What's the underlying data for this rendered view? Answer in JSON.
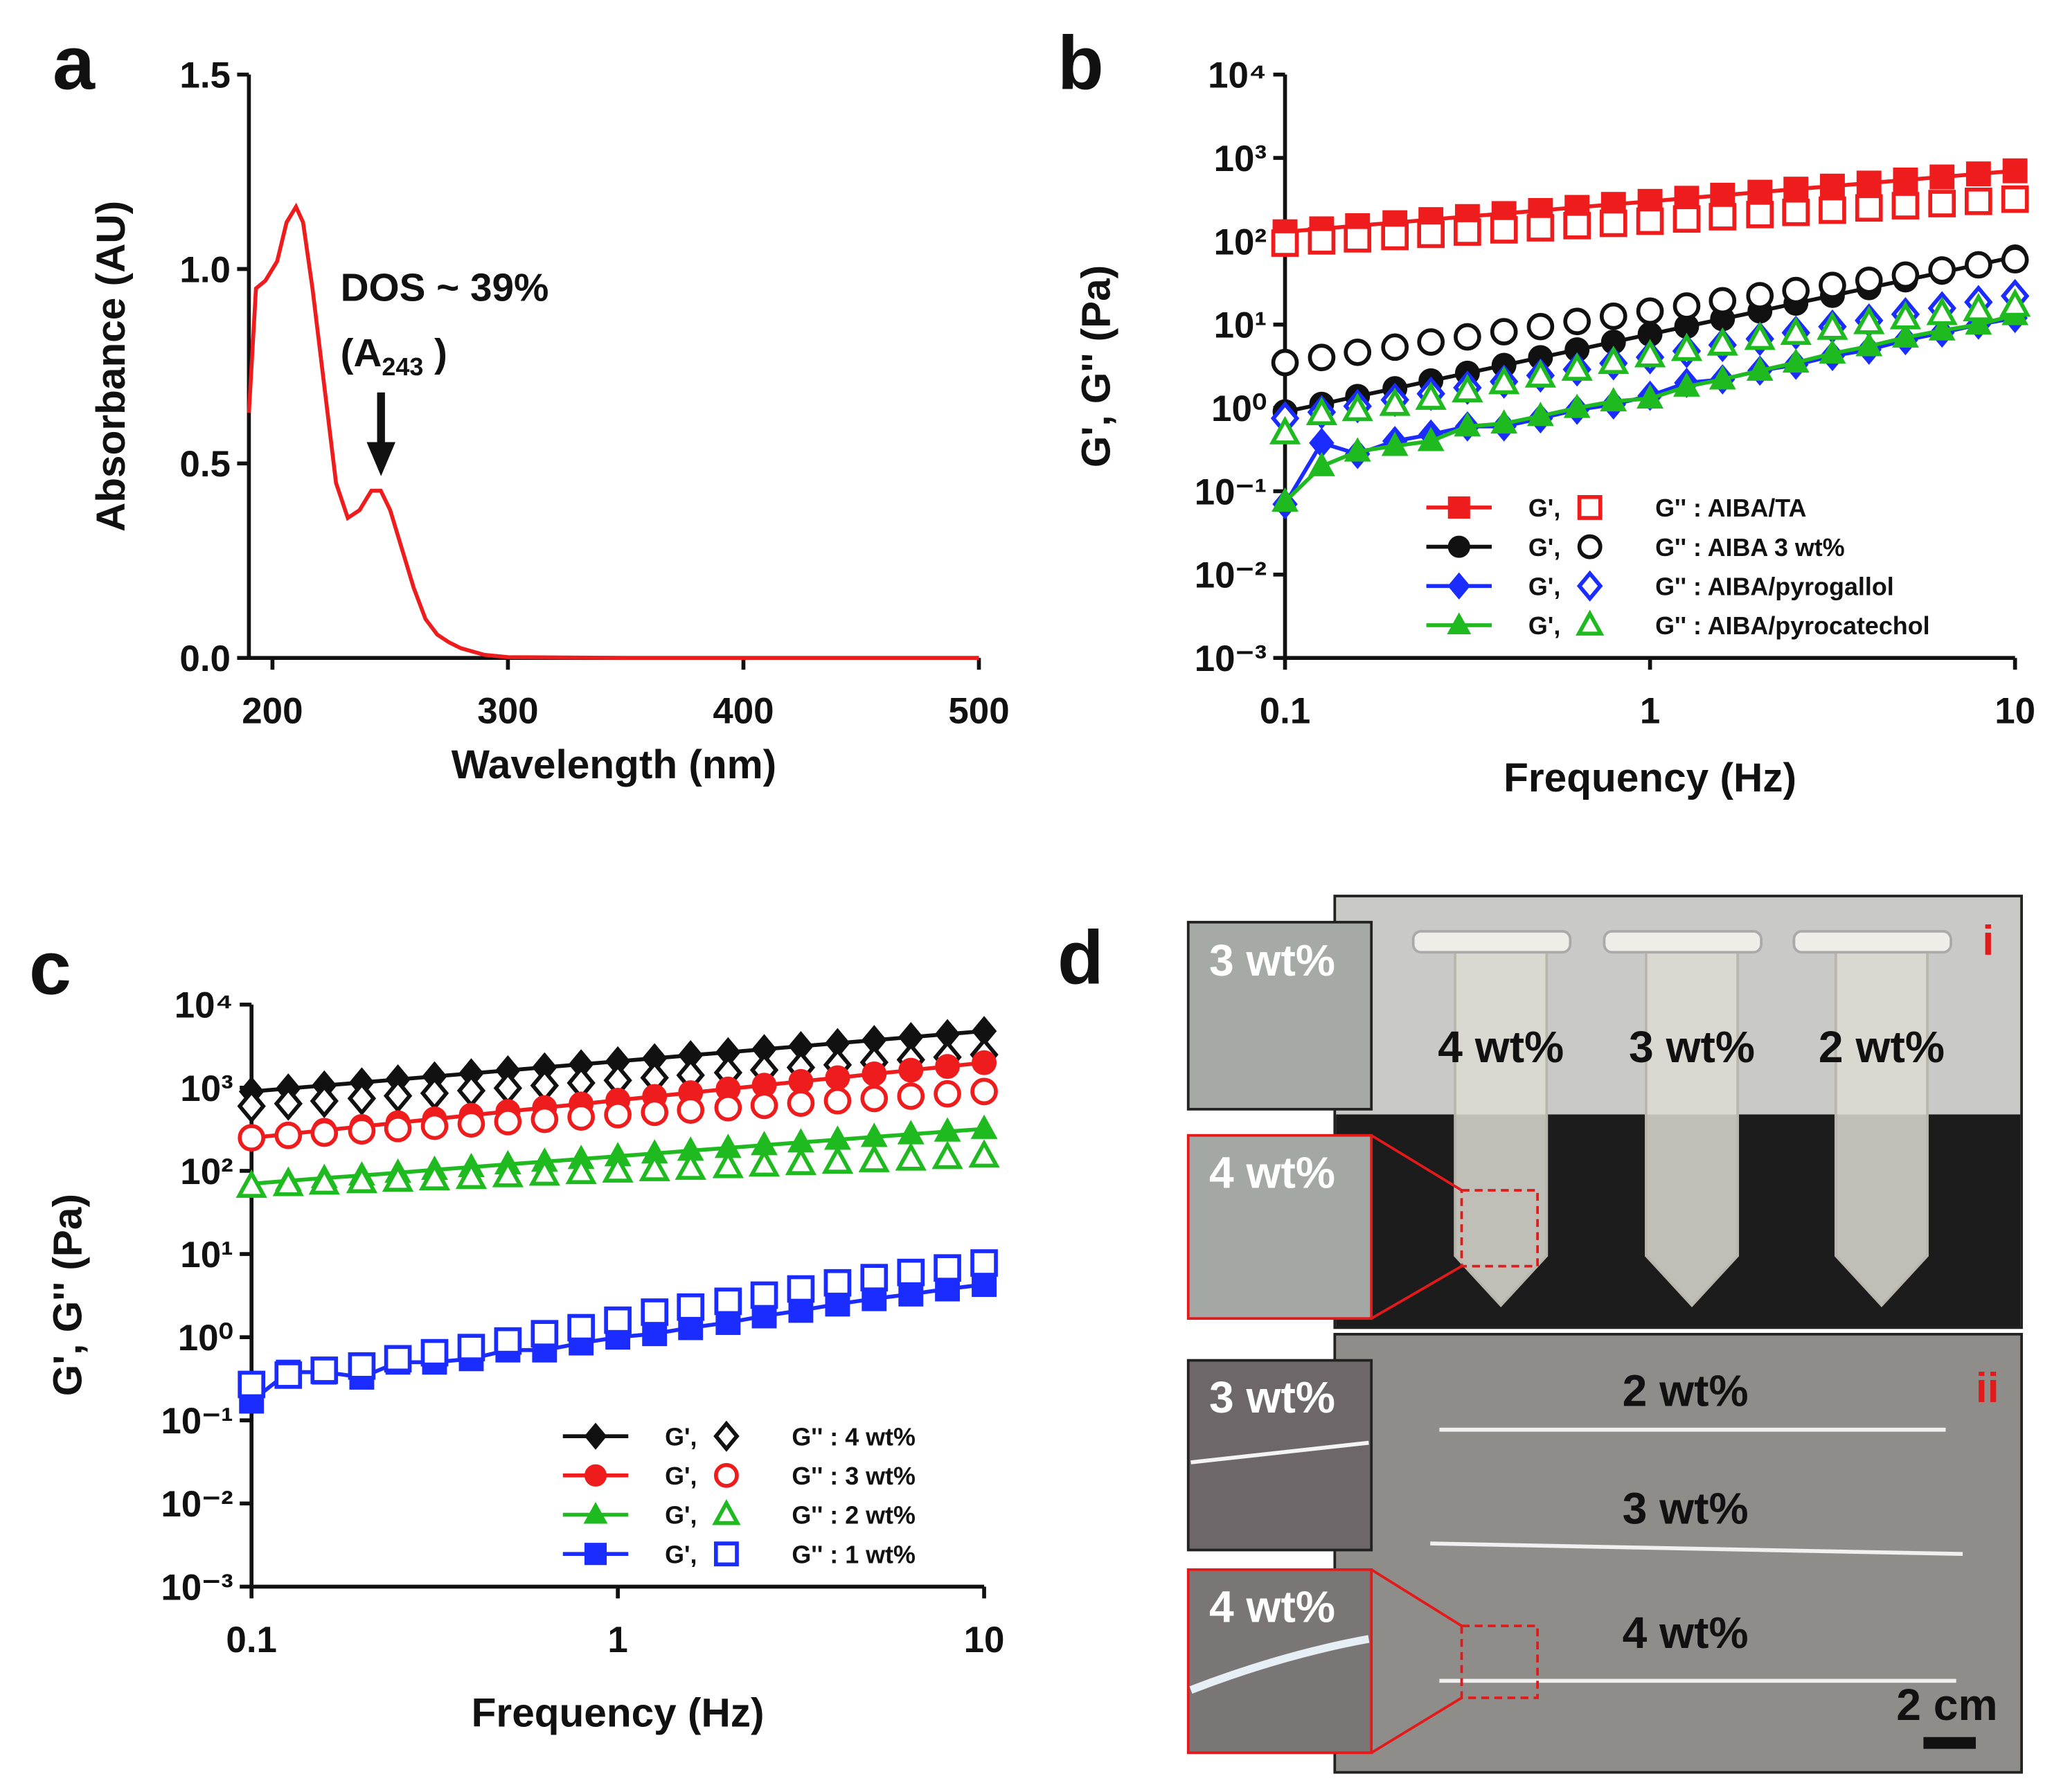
{
  "chart_data": [
    {
      "type": "line",
      "panel": "a",
      "xlabel": "Wavelength (nm)",
      "ylabel": "Absorbance (AU)",
      "annotation": "DOS ~ 39%",
      "annotation_label": {
        "text": "(A",
        "sub": "243",
        "end": " )"
      },
      "xlim": [
        190,
        500
      ],
      "xticks": [
        200,
        300,
        400,
        500
      ],
      "ylim": [
        0,
        1.5
      ],
      "yticks": [
        {
          "value": 0,
          "label": "0.0"
        },
        {
          "value": 0.5,
          "label": "0.5"
        },
        {
          "value": 1,
          "label": "1.0"
        },
        {
          "value": 1.5,
          "label": "1.5"
        }
      ],
      "x": [
        190,
        193,
        197,
        202,
        206,
        210,
        213,
        217,
        222,
        227,
        232,
        237,
        242,
        246,
        250,
        255,
        260,
        265,
        270,
        275,
        280,
        290,
        300,
        350,
        400,
        450,
        500
      ],
      "series": [
        {
          "color": "#ee1c1c",
          "line": true,
          "values": [
            0.63,
            0.95,
            0.97,
            1.02,
            1.12,
            1.16,
            1.12,
            0.95,
            0.7,
            0.45,
            0.36,
            0.38,
            0.43,
            0.43,
            0.38,
            0.28,
            0.18,
            0.1,
            0.06,
            0.04,
            0.025,
            0.008,
            0.002,
            0,
            0,
            0,
            0
          ]
        }
      ]
    },
    {
      "type": "line",
      "panel": "b",
      "xlabel": "Frequency (Hz)",
      "ylabel": "G', G'' (Pa)",
      "xscale": "log",
      "yscale": "log",
      "legend": "lower right",
      "xlim": [
        0.1,
        10
      ],
      "xticks": [
        0.1,
        1,
        10
      ],
      "ylim": [
        0.001,
        10000
      ],
      "yticks": [
        {
          "value": 0.001,
          "label": "10⁻³"
        },
        {
          "value": 0.01,
          "label": "10⁻²"
        },
        {
          "value": 0.1,
          "label": "10⁻¹"
        },
        {
          "value": 1,
          "label": "10⁰"
        },
        {
          "value": 10,
          "label": "10¹"
        },
        {
          "value": 100,
          "label": "10²"
        },
        {
          "value": 1000,
          "label": "10³"
        },
        {
          "value": 10000,
          "label": "10⁴"
        }
      ],
      "x": [
        0.1,
        0.126,
        0.158,
        0.2,
        0.251,
        0.316,
        0.398,
        0.501,
        0.631,
        0.794,
        1,
        1.26,
        1.58,
        2,
        2.51,
        3.16,
        3.98,
        5.01,
        6.31,
        7.94,
        10
      ],
      "series": [
        {
          "name": "G',",
          "color": "#ee1c1c",
          "marker": "square",
          "filled": true,
          "line": true,
          "values": [
            130,
            141,
            154,
            167,
            182,
            198,
            215,
            234,
            255,
            277,
            301,
            328,
            357,
            388,
            422,
            459,
            499,
            543,
            591,
            643,
            700
          ]
        },
        {
          "name": "G'' : AIBA/TA",
          "color": "#ee1c1c",
          "marker": "square",
          "filled": false,
          "line": false,
          "values": [
            95,
            101,
            107,
            114,
            121,
            129,
            137,
            145,
            154,
            164,
            174,
            185,
            197,
            209,
            222,
            236,
            251,
            267,
            283,
            301,
            320
          ]
        },
        {
          "name": "G',",
          "color": "#111111",
          "marker": "circle",
          "filled": true,
          "line": true,
          "values": [
            0.9,
            1.11,
            1.38,
            1.71,
            2.12,
            2.62,
            3.25,
            4.03,
            4.99,
            6.18,
            7.65,
            9.5,
            11.7,
            14.5,
            18,
            22.3,
            27.6,
            34.2,
            42.3,
            52.4,
            65
          ]
        },
        {
          "name": "G'' : AIBA 3 wt%",
          "color": "#111111",
          "marker": "circle",
          "filled": false,
          "line": false,
          "values": [
            3.5,
            4.03,
            4.65,
            5.36,
            6.18,
            7.12,
            8.21,
            9.46,
            10.9,
            12.6,
            14.5,
            16.7,
            19.3,
            22.2,
            25.6,
            29.5,
            34,
            39.2,
            45.2,
            52.1,
            60
          ]
        },
        {
          "name": "G',",
          "color": "#1a2cff",
          "marker": "diamond",
          "filled": true,
          "line": true,
          "values": [
            0.07,
            0.38,
            0.28,
            0.4,
            0.48,
            0.6,
            0.6,
            0.75,
            0.95,
            1.1,
            1.4,
            2,
            2.2,
            2.8,
            3.3,
            4.2,
            5,
            6.5,
            8,
            10,
            12
          ]
        },
        {
          "name": "G'' : AIBA/pyrogallol",
          "color": "#1a2cff",
          "marker": "diamond",
          "filled": false,
          "line": false,
          "values": [
            0.75,
            0.89,
            1.05,
            1.25,
            1.48,
            1.75,
            2.07,
            2.45,
            2.9,
            3.43,
            4.06,
            4.81,
            5.69,
            6.74,
            7.98,
            9.45,
            11.2,
            13.3,
            15.7,
            18.6,
            22
          ]
        },
        {
          "name": "G',",
          "color": "#1fba1f",
          "marker": "triangle",
          "filled": true,
          "line": true,
          "values": [
            0.075,
            0.2,
            0.3,
            0.35,
            0.4,
            0.6,
            0.65,
            0.8,
            1,
            1.2,
            1.3,
            1.8,
            2.2,
            2.8,
            3.5,
            4.5,
            5.5,
            7,
            8.5,
            10,
            13
          ]
        },
        {
          "name": "G'' : AIBA/pyrocatechol",
          "color": "#1fba1f",
          "marker": "triangle",
          "filled": false,
          "line": false,
          "values": [
            0.5,
            0.85,
            0.95,
            1.1,
            1.3,
            1.6,
            2,
            2.4,
            2.9,
            3.5,
            4.2,
            5,
            5.8,
            6.8,
            7.8,
            9,
            10.5,
            12,
            13.5,
            15,
            17
          ]
        }
      ]
    },
    {
      "type": "line",
      "panel": "c",
      "xlabel": "Frequency (Hz)",
      "ylabel": "G', G'' (Pa)",
      "xscale": "log",
      "yscale": "log",
      "legend": "lower right",
      "xlim": [
        0.1,
        10
      ],
      "xticks": [
        0.1,
        1,
        10
      ],
      "ylim": [
        0.001,
        10000
      ],
      "yticks": [
        {
          "value": 0.001,
          "label": "10⁻³"
        },
        {
          "value": 0.01,
          "label": "10⁻²"
        },
        {
          "value": 0.1,
          "label": "10⁻¹"
        },
        {
          "value": 1,
          "label": "10⁰"
        },
        {
          "value": 10,
          "label": "10¹"
        },
        {
          "value": 100,
          "label": "10²"
        },
        {
          "value": 1000,
          "label": "10³"
        },
        {
          "value": 10000,
          "label": "10⁴"
        }
      ],
      "x": [
        0.1,
        0.126,
        0.158,
        0.2,
        0.251,
        0.316,
        0.398,
        0.501,
        0.631,
        0.794,
        1,
        1.26,
        1.58,
        2,
        2.51,
        3.16,
        3.98,
        5.01,
        6.31,
        7.94,
        10
      ],
      "series": [
        {
          "name": "G',",
          "color": "#111111",
          "marker": "diamond",
          "filled": true,
          "line": true,
          "values": [
            900,
            979,
            1064,
            1157,
            1258,
            1368,
            1487,
            1617,
            1758,
            1911,
            2078,
            2259,
            2457,
            2671,
            2904,
            3158,
            3433,
            3733,
            4059,
            4413,
            4800
          ]
        },
        {
          "name": "G'' : 4 wt%",
          "color": "#111111",
          "marker": "diamond",
          "filled": false,
          "line": false,
          "values": [
            600,
            644,
            692,
            743,
            798,
            857,
            921,
            989,
            1062,
            1141,
            1225,
            1316,
            1413,
            1518,
            1630,
            1751,
            1881,
            2020,
            2170,
            2330,
            2500
          ]
        },
        {
          "name": "G',",
          "color": "#ee1c1c",
          "marker": "circle",
          "filled": true,
          "line": true,
          "values": [
            250,
            277,
            308,
            342,
            379,
            421,
            467,
            518,
            575,
            638,
            707,
            785,
            871,
            966,
            1072,
            1190,
            1320,
            1465,
            1625,
            1803,
            2000
          ]
        },
        {
          "name": "G'' : 3 wt%",
          "color": "#ee1c1c",
          "marker": "circle",
          "filled": false,
          "line": false,
          "values": [
            250,
            267,
            284,
            303,
            323,
            344,
            367,
            391,
            417,
            445,
            474,
            506,
            539,
            575,
            613,
            653,
            697,
            743,
            792,
            844,
            900
          ]
        },
        {
          "name": "G',",
          "color": "#1fba1f",
          "marker": "triangle",
          "filled": true,
          "line": true,
          "values": [
            70,
            76,
            82,
            88,
            95,
            103,
            111,
            120,
            129,
            139,
            150,
            162,
            175,
            189,
            204,
            220,
            237,
            256,
            276,
            297,
            320
          ]
        },
        {
          "name": "G'' : 2 wt%",
          "color": "#1fba1f",
          "marker": "triangle",
          "filled": false,
          "line": false,
          "values": [
            65,
            68,
            71,
            74,
            77,
            80,
            83,
            87,
            91,
            95,
            99,
            103,
            107,
            112,
            117,
            122,
            127,
            132,
            138,
            144,
            150
          ]
        },
        {
          "name": "G',",
          "color": "#1a2cff",
          "marker": "square",
          "filled": true,
          "line": true,
          "values": [
            0.17,
            0.38,
            0.38,
            0.33,
            0.5,
            0.5,
            0.55,
            0.7,
            0.7,
            0.85,
            1,
            1.1,
            1.3,
            1.5,
            1.8,
            2.1,
            2.5,
            2.9,
            3.3,
            3.8,
            4.3
          ]
        },
        {
          "name": "G'' : 1 wt%",
          "color": "#1a2cff",
          "marker": "square",
          "filled": false,
          "line": false,
          "values": [
            0.27,
            0.35,
            0.4,
            0.45,
            0.55,
            0.65,
            0.75,
            0.9,
            1.1,
            1.3,
            1.6,
            2,
            2.3,
            2.7,
            3.2,
            3.8,
            4.5,
            5.2,
            6,
            6.8,
            7.8
          ]
        }
      ]
    }
  ],
  "photo": {
    "panel": "d",
    "top": {
      "label": "i",
      "insets": [
        "3 wt%",
        "4 wt%"
      ],
      "tubes": [
        "4 wt%",
        "3 wt%",
        "2 wt%"
      ]
    },
    "bottom": {
      "label": "ii",
      "insets": [
        "3 wt%",
        "4 wt%"
      ],
      "fibers": [
        "2 wt%",
        "3 wt%",
        "4 wt%"
      ],
      "scale_bar": "2 cm"
    }
  }
}
